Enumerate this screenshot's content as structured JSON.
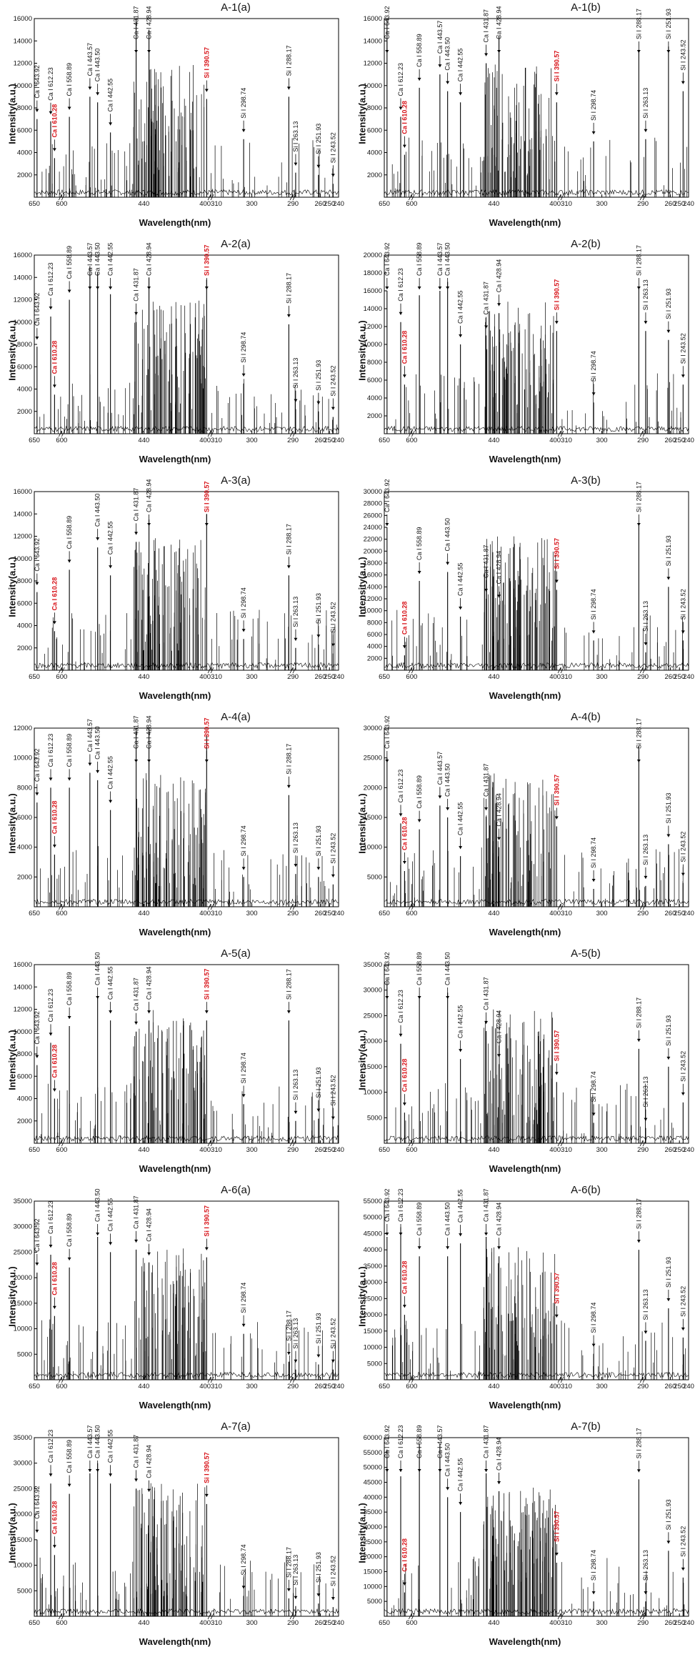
{
  "x_label": "Wavelength(nm)",
  "y_label": "Intensity(a.u.)",
  "x_ticks": [
    "650",
    "600",
    "440",
    "400310",
    "300",
    "290",
    "260",
    "250",
    "240"
  ],
  "x_tick_positions": [
    650,
    600,
    440,
    400310,
    300,
    290,
    260,
    250,
    240
  ],
  "annotations": [
    "Ca I 643.92",
    "Ca I 612.23",
    "Ca I 610.28",
    "Ca I 558.89",
    "Ca I 443.57",
    "Ca I 443.50",
    "Ca I 442.55",
    "Ca I 431.87",
    "Ca I 428.94",
    "Si I 390.57",
    "Si I 298.74",
    "Si I 288.17",
    "Si I 263.13",
    "Si I 251.93",
    "Si I 243.52"
  ],
  "colors": {
    "line": "#000000",
    "highlight": "#d8141a"
  },
  "chart_data": [
    {
      "title": "A-1(a)",
      "type": "line",
      "ylim": [
        0,
        16000
      ],
      "yticks": [
        2000,
        4000,
        6000,
        8000,
        10000,
        12000,
        14000,
        16000
      ],
      "peaks": {
        "Ca I 643.92": 7000,
        "Ca I 612.23": 6800,
        "Ca I 610.28": 3500,
        "Ca I 558.89": 7200,
        "Ca I 443.57": 9000,
        "Ca I 443.50": 8500,
        "Ca I 442.55": 5800,
        "Ca I 431.87": 16000,
        "Ca I 428.94": 15000,
        "Si I 390.57": 8800,
        "Si I 298.74": 5200,
        "Si I 288.17": 9000,
        "Si I 263.13": 2200,
        "Si I 251.93": 2000,
        "Si I 243.52": 1200
      }
    },
    {
      "title": "A-1(b)",
      "type": "line",
      "ylim": [
        0,
        16000
      ],
      "yticks": [
        2000,
        4000,
        6000,
        8000,
        10000,
        12000,
        14000,
        16000
      ],
      "peaks": {
        "Ca I 643.92": 16000,
        "Ca I 612.23": 7200,
        "Ca I 610.28": 3800,
        "Ca I 558.89": 9800,
        "Ca I 443.57": 11000,
        "Ca I 443.50": 9500,
        "Ca I 442.55": 8500,
        "Ca I 431.87": 12000,
        "Ca I 428.94": 14500,
        "Si I 390.57": 8500,
        "Si I 298.74": 5000,
        "Si I 288.17": 13200,
        "Si I 263.13": 5200,
        "Si I 251.93": 13500,
        "Si I 243.52": 9500
      }
    },
    {
      "title": "A-2(a)",
      "type": "line",
      "ylim": [
        0,
        16000
      ],
      "yticks": [
        2000,
        4000,
        6000,
        8000,
        10000,
        12000,
        14000,
        16000
      ],
      "peaks": {
        "Ca I 643.92": 7800,
        "Ca I 612.23": 10500,
        "Ca I 610.28": 3500,
        "Ca I 558.89": 12000,
        "Ca I 443.57": 15000,
        "Ca I 443.50": 14500,
        "Ca I 442.55": 12500,
        "Ca I 431.87": 10000,
        "Ca I 428.94": 14000,
        "Si I 390.57": 13800,
        "Si I 298.74": 4500,
        "Si I 288.17": 9800,
        "Si I 263.13": 2200,
        "Si I 251.93": 2000,
        "Si I 243.52": 1500
      }
    },
    {
      "title": "A-2(b)",
      "type": "line",
      "ylim": [
        0,
        20000
      ],
      "yticks": [
        2000,
        4000,
        6000,
        8000,
        10000,
        12000,
        14000,
        16000,
        18000,
        20000
      ],
      "peaks": {
        "Ca I 643.92": 16000,
        "Ca I 612.23": 12500,
        "Ca I 610.28": 5500,
        "Ca I 558.89": 15500,
        "Ca I 443.57": 16000,
        "Ca I 443.50": 17000,
        "Ca I 442.55": 10000,
        "Ca I 431.87": 11000,
        "Ca I 428.94": 13500,
        "Si I 390.57": 11500,
        "Si I 298.74": 3500,
        "Si I 288.17": 16500,
        "Si I 263.13": 11500,
        "Si I 251.93": 10500,
        "Si I 243.52": 5500
      }
    },
    {
      "title": "A-3(a)",
      "type": "line",
      "ylim": [
        0,
        16000
      ],
      "yticks": [
        2000,
        4000,
        6000,
        8000,
        10000,
        12000,
        14000,
        16000
      ],
      "peaks": {
        "Ca I 643.92": 7000,
        "Ca I 610.28": 3500,
        "Ca I 558.89": 9000,
        "Ca I 443.50": 11000,
        "Ca I 442.55": 8500,
        "Ca I 431.87": 11500,
        "Ca I 428.94": 13500,
        "Si I 390.57": 14000,
        "Si I 298.74": 2800,
        "Si I 288.17": 8500,
        "Si I 263.13": 2000,
        "Si I 251.93": 2300,
        "Si I 243.52": 1500
      }
    },
    {
      "title": "A-3(b)",
      "type": "line",
      "ylim": [
        0,
        30000
      ],
      "yticks": [
        2000,
        4000,
        6000,
        8000,
        10000,
        12000,
        14000,
        16000,
        18000,
        20000,
        22000,
        24000,
        26000,
        28000,
        30000
      ],
      "peaks": {
        "Ca I 643.92": 24000,
        "Ca I 610.28": 2500,
        "Ca I 558.89": 15000,
        "Ca I 443.50": 16500,
        "Ca I 442.55": 9000,
        "Ca I 431.87": 12000,
        "Ca I 428.94": 11000,
        "Si I 390.57": 13500,
        "Si I 298.74": 5000,
        "Si I 288.17": 24500,
        "Si I 263.13": 3000,
        "Si I 251.93": 14000,
        "Si I 243.52": 5000
      }
    },
    {
      "title": "A-4(a)",
      "type": "line",
      "ylim": [
        0,
        12000
      ],
      "yticks": [
        2000,
        4000,
        6000,
        8000,
        10000,
        12000
      ],
      "peaks": {
        "Ca I 643.92": 7000,
        "Ca I 612.23": 8000,
        "Ca I 610.28": 3500,
        "Ca I 558.89": 8000,
        "Ca I 443.57": 9000,
        "Ca I 443.50": 8500,
        "Ca I 442.55": 6500,
        "Ca I 431.87": 12000,
        "Ca I 428.94": 12000,
        "Si I 390.57": 11500,
        "Si I 298.74": 2000,
        "Si I 288.17": 7500,
        "Si I 263.13": 2200,
        "Si I 251.93": 2000,
        "Si I 243.52": 1500
      }
    },
    {
      "title": "A-4(b)",
      "type": "line",
      "ylim": [
        0,
        30000
      ],
      "yticks": [
        5000,
        10000,
        15000,
        20000,
        25000,
        30000
      ],
      "peaks": {
        "Ca I 643.92": 25000,
        "Ca I 612.23": 14000,
        "Ca I 610.28": 6000,
        "Ca I 558.89": 13000,
        "Ca I 443.57": 17000,
        "Ca I 443.50": 15000,
        "Ca I 442.55": 8500,
        "Ca I 431.87": 15000,
        "Ca I 428.94": 10000,
        "Si I 390.57": 13500,
        "Si I 298.74": 3000,
        "Si I 288.17": 27000,
        "Si I 263.13": 3500,
        "Si I 251.93": 10500,
        "Si I 243.52": 4000
      }
    },
    {
      "title": "A-5(a)",
      "type": "line",
      "ylim": [
        0,
        16000
      ],
      "yticks": [
        2000,
        4000,
        6000,
        8000,
        10000,
        12000,
        14000,
        16000
      ],
      "peaks": {
        "Ca I 643.92": 7000,
        "Ca I 612.23": 9000,
        "Ca I 610.28": 4000,
        "Ca I 558.89": 10500,
        "Ca I 443.50": 13000,
        "Ca I 442.55": 11000,
        "Ca I 431.87": 10000,
        "Ca I 428.94": 11000,
        "Si I 390.57": 11000,
        "Si I 298.74": 3500,
        "Si I 288.17": 11000,
        "Si I 263.13": 2000,
        "Si I 251.93": 2200,
        "Si I 243.52": 1500
      }
    },
    {
      "title": "A-5(b)",
      "type": "line",
      "ylim": [
        0,
        35000
      ],
      "yticks": [
        5000,
        10000,
        15000,
        20000,
        25000,
        30000,
        35000
      ],
      "peaks": {
        "Ca I 643.92": 32000,
        "Ca I 612.23": 19500,
        "Ca I 610.28": 6000,
        "Ca I 558.89": 28500,
        "Ca I 443.50": 29500,
        "Ca I 442.55": 16500,
        "Ca I 431.87": 22000,
        "Ca I 428.94": 15500,
        "Si I 390.57": 12000,
        "Si I 298.74": 4000,
        "Si I 288.17": 18500,
        "Si I 263.13": 3000,
        "Si I 251.93": 15000,
        "Si I 243.52": 8000
      }
    },
    {
      "title": "A-6(a)",
      "type": "line",
      "ylim": [
        0,
        35000
      ],
      "yticks": [
        5000,
        10000,
        15000,
        20000,
        25000,
        30000,
        35000
      ],
      "peaks": {
        "Ca I 643.92": 21000,
        "Ca I 612.23": 24500,
        "Ca I 610.28": 12500,
        "Ca I 558.89": 22000,
        "Ca I 443.50": 28000,
        "Ca I 442.55": 25000,
        "Ca I 431.87": 25500,
        "Ca I 428.94": 23000,
        "Si I 390.57": 24000,
        "Si I 298.74": 9000,
        "Si I 288.17": 3500,
        "Si I 263.13": 2000,
        "Si I 251.93": 3000,
        "Si I 243.52": 2000
      }
    },
    {
      "title": "A-6(b)",
      "type": "line",
      "ylim": [
        0,
        55000
      ],
      "yticks": [
        5000,
        10000,
        15000,
        20000,
        25000,
        30000,
        35000,
        40000,
        45000,
        50000,
        55000
      ],
      "peaks": {
        "Ca I 643.92": 44000,
        "Ca I 612.23": 47000,
        "Ca I 610.28": 20000,
        "Ca I 558.89": 38000,
        "Ca I 443.50": 38000,
        "Ca I 442.55": 42000,
        "Ca I 431.87": 44000,
        "Ca I 428.94": 38000,
        "Si I 390.57": 17000,
        "Si I 298.74": 8000,
        "Si I 288.17": 40000,
        "Si I 263.13": 12000,
        "Si I 251.93": 22000,
        "Si I 243.52": 13000
      }
    },
    {
      "title": "A-7(a)",
      "type": "line",
      "ylim": [
        0,
        35000
      ],
      "yticks": [
        5000,
        10000,
        15000,
        20000,
        25000,
        30000,
        35000
      ],
      "peaks": {
        "Ca I 643.92": 15000,
        "Ca I 612.23": 26000,
        "Ca I 610.28": 12000,
        "Ca I 558.89": 24000,
        "Ca I 443.57": 28000,
        "Ca I 443.50": 30000,
        "Ca I 442.55": 26000,
        "Ca I 431.87": 25000,
        "Ca I 428.94": 23000,
        "Si I 390.57": 22000,
        "Si I 298.74": 4000,
        "Si I 288.17": 3500,
        "Si I 263.13": 2000,
        "Si I 251.93": 2500,
        "Si I 243.52": 1800
      }
    },
    {
      "title": "A-7(b)",
      "type": "line",
      "ylim": [
        0,
        60000
      ],
      "yticks": [
        5000,
        10000,
        15000,
        20000,
        25000,
        30000,
        35000,
        40000,
        45000,
        50000,
        55000,
        60000
      ],
      "peaks": {
        "Ca I 643.92": 56000,
        "Ca I 612.23": 47000,
        "Ca I 610.28": 8000,
        "Ca I 558.89": 58000,
        "Ca I 443.57": 58000,
        "Ca I 443.50": 40000,
        "Ca I 442.55": 35000,
        "Ca I 431.87": 48000,
        "Ca I 428.94": 42000,
        "Si I 390.57": 18000,
        "Si I 298.74": 5000,
        "Si I 288.17": 46000,
        "Si I 263.13": 5000,
        "Si I 251.93": 22000,
        "Si I 243.52": 13000
      }
    }
  ]
}
